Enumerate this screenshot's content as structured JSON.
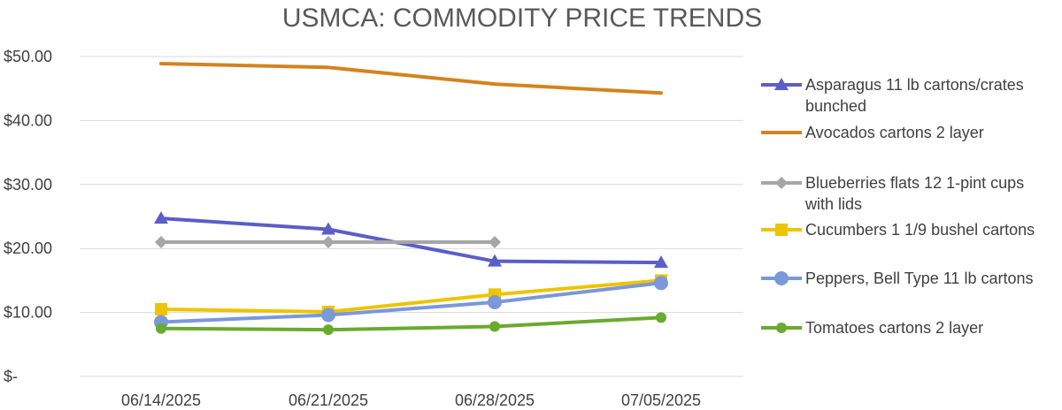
{
  "chart_data": {
    "type": "line",
    "title": "USMCA: COMMODITY PRICE TRENDS",
    "xlabel": "",
    "ylabel": "",
    "categories": [
      "06/14/2025",
      "06/21/2025",
      "06/28/2025",
      "07/05/2025"
    ],
    "ylim": [
      0,
      50
    ],
    "yticks": [
      0,
      10,
      20,
      30,
      40,
      50
    ],
    "ytick_labels": [
      "$-",
      "$10.00",
      "$20.00",
      "$30.00",
      "$40.00",
      "$50.00"
    ],
    "grid": true,
    "legend_position": "right",
    "series": [
      {
        "name_lines": [
          "Asparagus 11 lb cartons/crates",
          "bunched"
        ],
        "color": "#5B5EC7",
        "marker": "triangle",
        "values": [
          24.7,
          23.0,
          18.0,
          17.8
        ]
      },
      {
        "name_lines": [
          "Avocados cartons 2 layer"
        ],
        "color": "#D4831F",
        "marker": "none",
        "values": [
          48.9,
          48.3,
          45.7,
          44.3
        ]
      },
      {
        "name_lines": [
          "Blueberries flats 12 1-pint cups",
          "with lids"
        ],
        "color": "#A6A6A6",
        "marker": "diamond",
        "values": [
          21.0,
          21.0,
          21.0,
          null
        ]
      },
      {
        "name_lines": [
          "Cucumbers 1 1/9 bushel cartons"
        ],
        "color": "#EDC400",
        "marker": "square",
        "values": [
          10.5,
          10.1,
          12.8,
          15.0
        ]
      },
      {
        "name_lines": [
          "Peppers, Bell Type 11 lb cartons"
        ],
        "color": "#7A98DA",
        "marker": "circle",
        "values": [
          8.5,
          9.6,
          11.6,
          14.6
        ]
      },
      {
        "name_lines": [
          "Tomatoes cartons 2 layer"
        ],
        "color": "#6AAA2E",
        "marker": "circle-small",
        "values": [
          7.5,
          7.3,
          7.8,
          9.2
        ]
      }
    ]
  }
}
